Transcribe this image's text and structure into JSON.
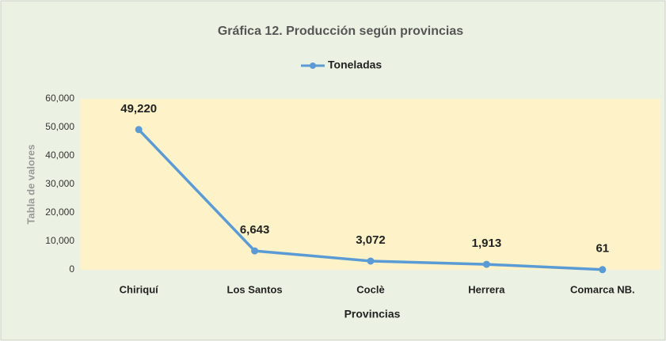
{
  "chart_data": {
    "type": "line",
    "title": "Gráfica 12. Producción según provincias",
    "x_label": "Provincias",
    "y_label": "Tabla de valores",
    "categories": [
      "Chiriquí",
      "Los Santos",
      "Coclè",
      "Herrera",
      "Comarca NB."
    ],
    "series": [
      {
        "name": "Toneladas",
        "color": "#5b9bd5",
        "values": [
          49220,
          6643,
          3072,
          1913,
          61
        ],
        "value_labels": [
          "49,220",
          "6,643",
          "3,072",
          "1,913",
          "61"
        ]
      }
    ],
    "ylim": [
      0,
      60000
    ],
    "yticks": [
      0,
      {
        "value": 10000,
        "label": "10,000"
      },
      {
        "value": 20000,
        "label": "20,000"
      },
      {
        "value": 30000,
        "label": "30,000"
      },
      {
        "value": 40000,
        "label": "40,000"
      },
      {
        "value": 50000,
        "label": "50,000"
      },
      {
        "value": 60000,
        "label": "60,000"
      }
    ],
    "legend": "top",
    "plot_background": "#fdf2c8"
  }
}
